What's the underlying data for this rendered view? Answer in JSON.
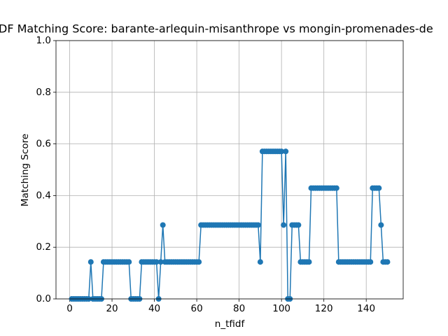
{
  "chart_data": {
    "type": "line",
    "title": "DF Matching Score: barante-arlequin-misanthrope vs mongin-promenades-de",
    "xlabel": "n_tfidf",
    "ylabel": "Matching Score",
    "x": [
      1,
      2,
      3,
      4,
      5,
      6,
      7,
      8,
      9,
      10,
      11,
      12,
      13,
      14,
      15,
      16,
      17,
      18,
      19,
      20,
      21,
      22,
      23,
      24,
      25,
      26,
      27,
      28,
      29,
      30,
      31,
      32,
      33,
      34,
      35,
      36,
      37,
      38,
      39,
      40,
      41,
      42,
      43,
      44,
      45,
      46,
      47,
      48,
      49,
      50,
      51,
      52,
      53,
      54,
      55,
      56,
      57,
      58,
      59,
      60,
      61,
      62,
      63,
      64,
      65,
      66,
      67,
      68,
      69,
      70,
      71,
      72,
      73,
      74,
      75,
      76,
      77,
      78,
      79,
      80,
      81,
      82,
      83,
      84,
      85,
      86,
      87,
      88,
      89,
      90,
      91,
      92,
      93,
      94,
      95,
      96,
      97,
      98,
      99,
      100,
      101,
      102,
      103,
      104,
      105,
      106,
      107,
      108,
      109,
      110,
      111,
      112,
      113,
      114,
      115,
      116,
      117,
      118,
      119,
      120,
      121,
      122,
      123,
      124,
      125,
      126,
      127,
      128,
      129,
      130,
      131,
      132,
      133,
      134,
      135,
      136,
      137,
      138,
      139,
      140,
      141,
      142,
      143,
      144,
      145,
      146,
      147,
      148,
      149,
      150
    ],
    "series": [
      {
        "name": "Matching Score",
        "color": "#1f77b4",
        "marker": true,
        "values": [
          0,
          0,
          0,
          0,
          0,
          0,
          0,
          0,
          0,
          0.143,
          0,
          0,
          0,
          0,
          0,
          0.143,
          0.143,
          0.143,
          0.143,
          0.143,
          0.143,
          0.143,
          0.143,
          0.143,
          0.143,
          0.143,
          0.143,
          0.143,
          0,
          0,
          0,
          0,
          0,
          0.143,
          0.143,
          0.143,
          0.143,
          0.143,
          0.143,
          0.143,
          0.143,
          0,
          0.143,
          0.286,
          0.143,
          0.143,
          0.143,
          0.143,
          0.143,
          0.143,
          0.143,
          0.143,
          0.143,
          0.143,
          0.143,
          0.143,
          0.143,
          0.143,
          0.143,
          0.143,
          0.143,
          0.286,
          0.286,
          0.286,
          0.286,
          0.286,
          0.286,
          0.286,
          0.286,
          0.286,
          0.286,
          0.286,
          0.286,
          0.286,
          0.286,
          0.286,
          0.286,
          0.286,
          0.286,
          0.286,
          0.286,
          0.286,
          0.286,
          0.286,
          0.286,
          0.286,
          0.286,
          0.286,
          0.286,
          0.143,
          0.571,
          0.571,
          0.571,
          0.571,
          0.571,
          0.571,
          0.571,
          0.571,
          0.571,
          0.571,
          0.286,
          0.571,
          0,
          0,
          0.286,
          0.286,
          0.286,
          0.286,
          0.143,
          0.143,
          0.143,
          0.143,
          0.143,
          0.429,
          0.429,
          0.429,
          0.429,
          0.429,
          0.429,
          0.429,
          0.429,
          0.429,
          0.429,
          0.429,
          0.429,
          0.429,
          0.143,
          0.143,
          0.143,
          0.143,
          0.143,
          0.143,
          0.143,
          0.143,
          0.143,
          0.143,
          0.143,
          0.143,
          0.143,
          0.143,
          0.143,
          0.143,
          0.429,
          0.429,
          0.429,
          0.429,
          0.286,
          0.143,
          0.143,
          0.143
        ]
      }
    ],
    "xlim": [
      -6.45,
      157.45
    ],
    "xticks": [
      0,
      20,
      40,
      60,
      80,
      100,
      120,
      140
    ],
    "ylim": [
      0,
      1
    ],
    "yticks": [
      {
        "value": 0,
        "label": "0.0"
      },
      {
        "value": 0.2,
        "label": "0.2"
      },
      {
        "value": 0.4,
        "label": "0.4"
      },
      {
        "value": 0.6,
        "label": "0.6"
      },
      {
        "value": 0.8,
        "label": "0.8"
      },
      {
        "value": 1,
        "label": "1.0"
      }
    ],
    "grid": true
  }
}
